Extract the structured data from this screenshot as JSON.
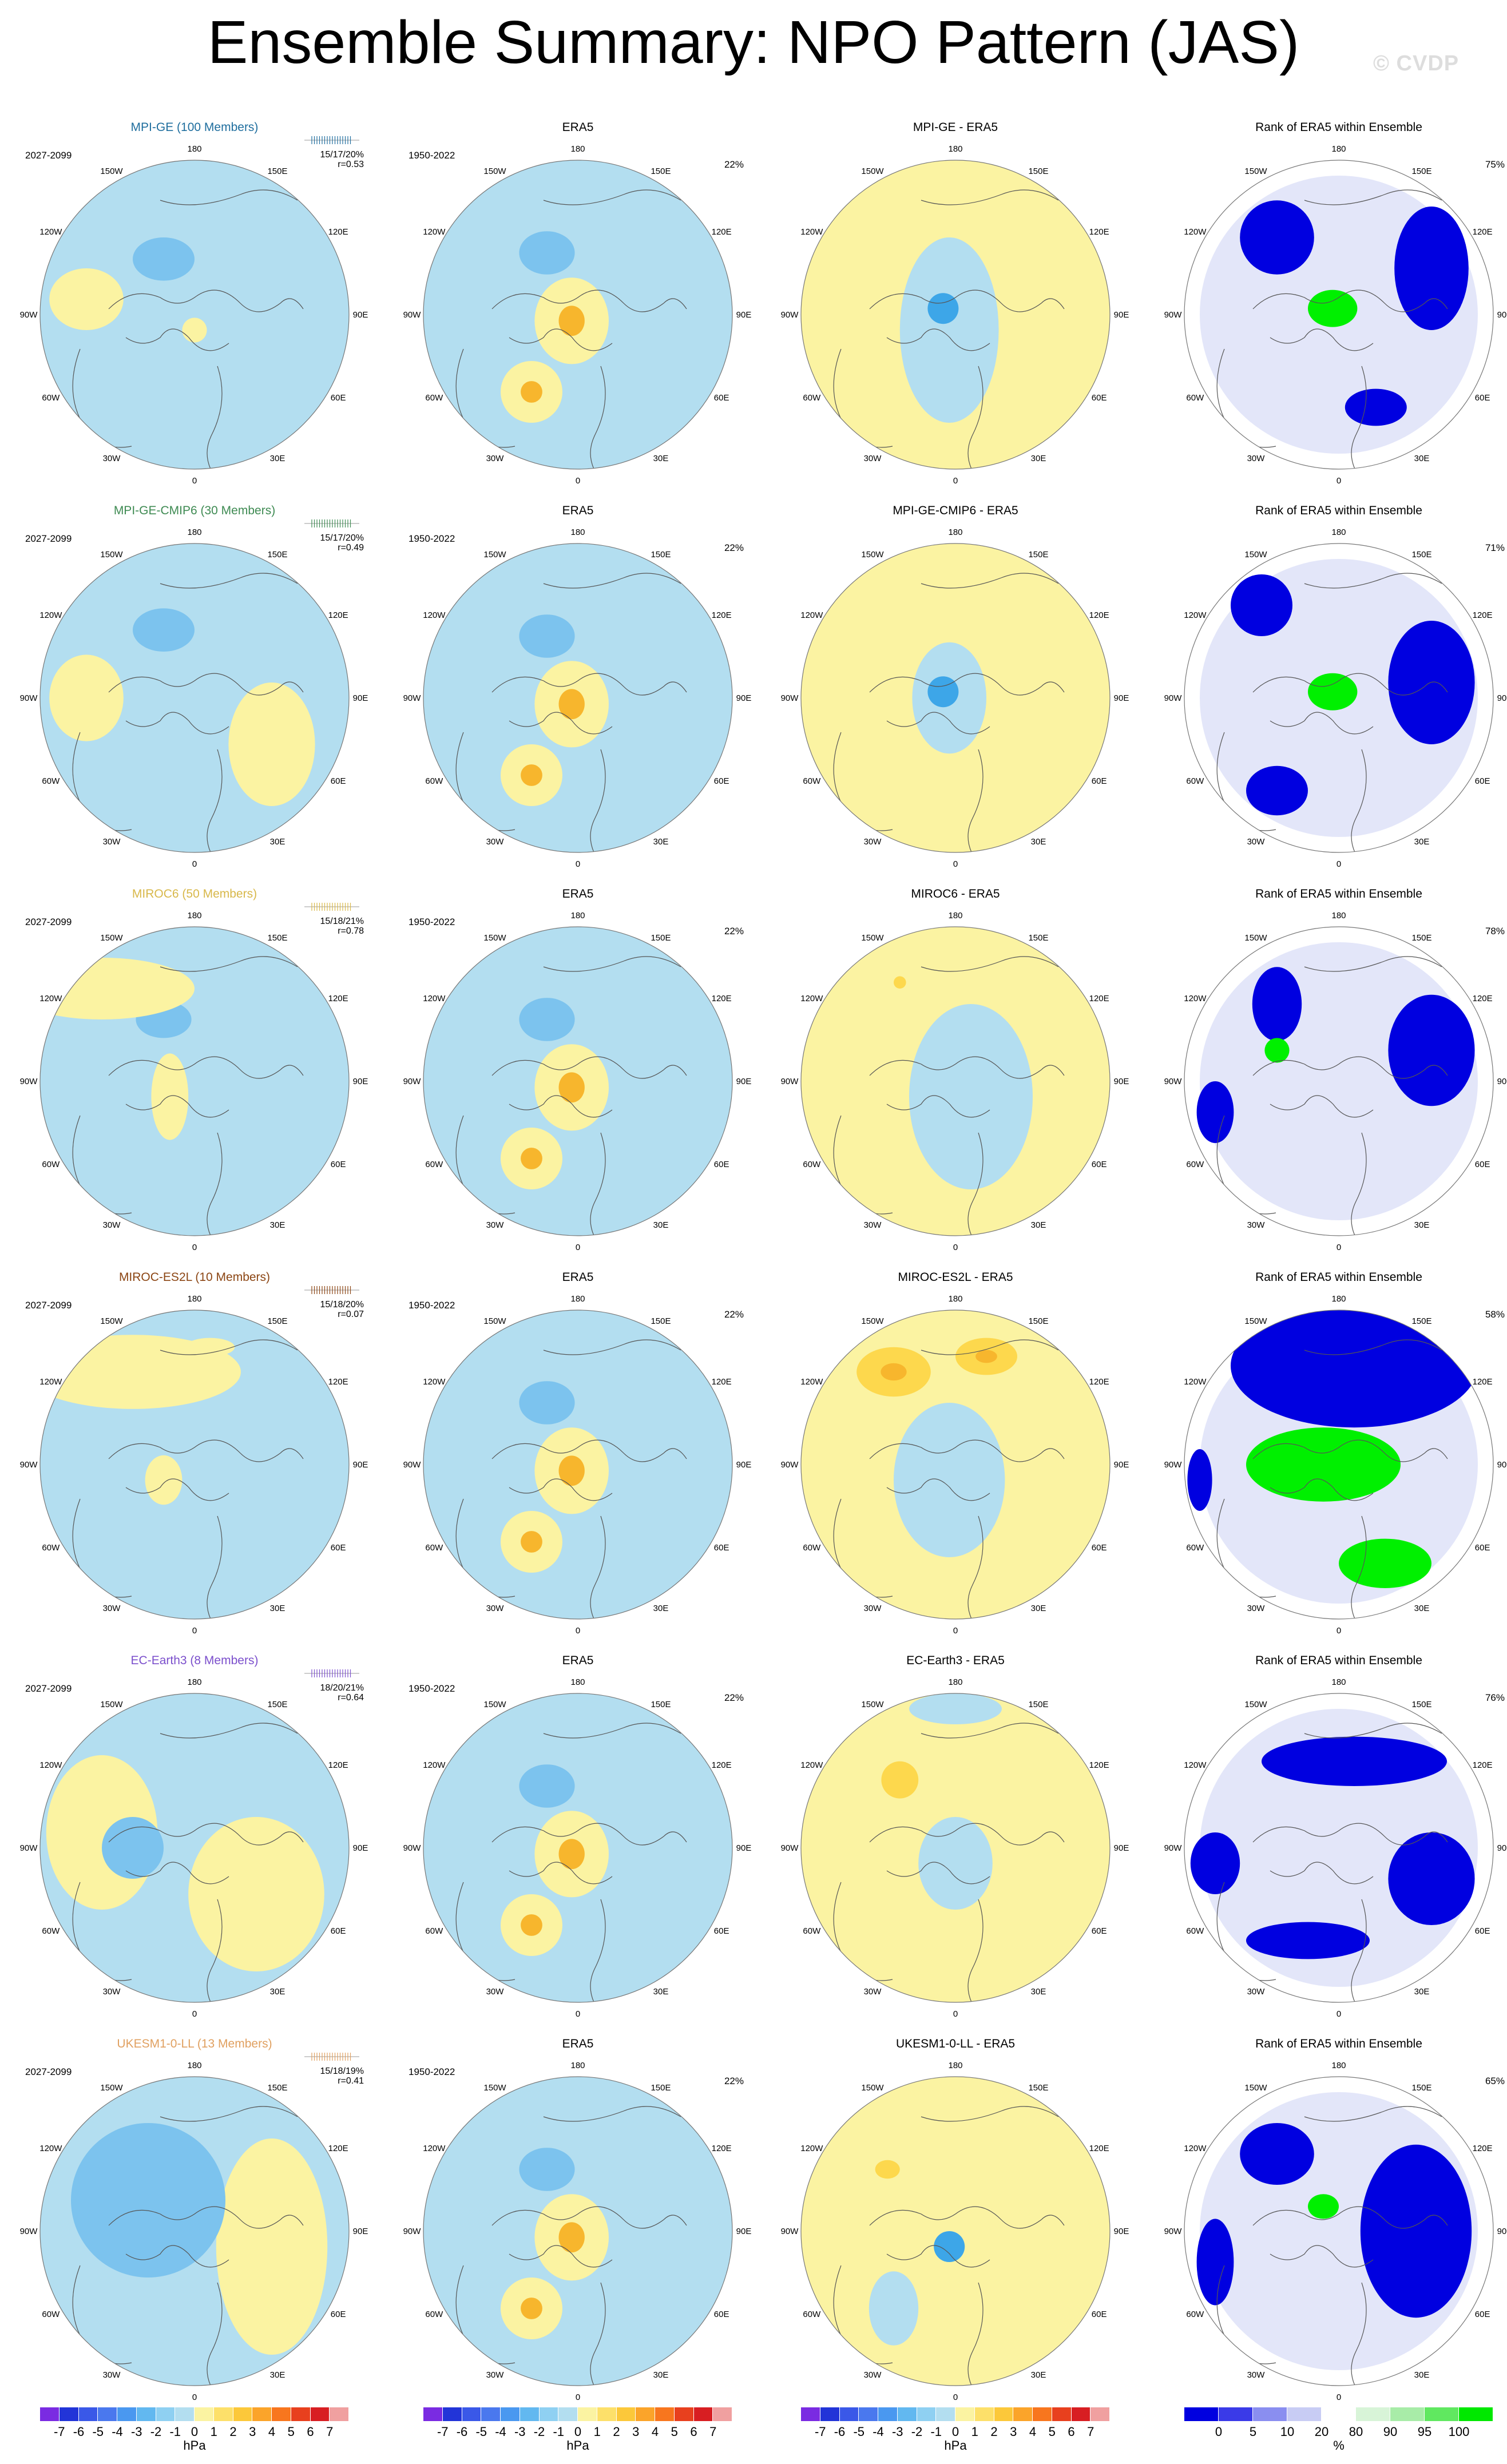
{
  "title": "Ensemble Summary: NPO Pattern (JAS)",
  "watermark": "© CVDP",
  "colors": {
    "pos_light": "#fbf3a2",
    "neg_light": "#b3def0",
    "pos_med": "#fdd84d",
    "neg_med": "#7cc3ee",
    "pos_strong": "#f7b62d",
    "neg_strong": "#3da6e8",
    "rank_low": "#0000e0",
    "rank_mid": "#c0c8f2",
    "rank_high": "#00f000",
    "land": "#555555"
  },
  "longitude_labels": [
    "180",
    "150E",
    "120E",
    "90E",
    "60E",
    "30E",
    "0",
    "30W",
    "60W",
    "90W",
    "120W",
    "150W"
  ],
  "rows": [
    {
      "model": "MPI-GE (100 Members)",
      "model_color": "#1f6e9e",
      "period": "2027-2099",
      "stats": "15/17/20%",
      "r": "r=0.53",
      "diff_title": "MPI-GE - ERA5",
      "era_title": "ERA5",
      "era_period": "1950-2022",
      "era_pct": "22%",
      "rank_title": "Rank of ERA5 within Ensemble",
      "rank_pct": "75%",
      "patterns": {
        "model": [
          [
            "neg",
            0.4,
            0.32,
            0.1,
            0.07
          ],
          [
            "pos",
            0.5,
            0.55,
            0.04,
            0.04
          ],
          [
            "pos",
            0.15,
            0.45,
            0.12,
            0.1
          ]
        ],
        "era": [
          [
            "neg",
            0.4,
            0.3,
            0.09,
            0.07
          ],
          [
            "pos",
            0.48,
            0.52,
            0.12,
            0.14
          ],
          [
            "pos",
            0.35,
            0.75,
            0.1,
            0.1
          ]
        ],
        "diff": [
          [
            "neg",
            0.48,
            0.55,
            0.16,
            0.3
          ],
          [
            "neg",
            0.46,
            0.48,
            0.05,
            0.05
          ]
        ],
        "rank": [
          [
            "low",
            0.3,
            0.25,
            0.12,
            0.12
          ],
          [
            "low",
            0.8,
            0.35,
            0.12,
            0.2
          ],
          [
            "high",
            0.48,
            0.48,
            0.08,
            0.06
          ],
          [
            "low",
            0.62,
            0.8,
            0.1,
            0.06
          ]
        ]
      }
    },
    {
      "model": "MPI-GE-CMIP6 (30 Members)",
      "model_color": "#3e8a52",
      "period": "2027-2099",
      "stats": "15/17/20%",
      "r": "r=0.49",
      "diff_title": "MPI-GE-CMIP6 - ERA5",
      "era_title": "ERA5",
      "era_period": "1950-2022",
      "era_pct": "22%",
      "rank_title": "Rank of ERA5 within Ensemble",
      "rank_pct": "71%",
      "patterns": {
        "model": [
          [
            "neg",
            0.4,
            0.28,
            0.1,
            0.07
          ],
          [
            "pos",
            0.15,
            0.5,
            0.12,
            0.14
          ],
          [
            "pos",
            0.75,
            0.65,
            0.14,
            0.2
          ]
        ],
        "era": [
          [
            "neg",
            0.4,
            0.3,
            0.09,
            0.07
          ],
          [
            "pos",
            0.48,
            0.52,
            0.12,
            0.14
          ],
          [
            "pos",
            0.35,
            0.75,
            0.1,
            0.1
          ]
        ],
        "diff": [
          [
            "neg",
            0.48,
            0.5,
            0.12,
            0.18
          ],
          [
            "neg",
            0.46,
            0.48,
            0.05,
            0.05
          ]
        ],
        "rank": [
          [
            "low",
            0.25,
            0.2,
            0.1,
            0.1
          ],
          [
            "low",
            0.8,
            0.45,
            0.14,
            0.2
          ],
          [
            "high",
            0.48,
            0.48,
            0.08,
            0.06
          ],
          [
            "low",
            0.3,
            0.8,
            0.1,
            0.08
          ]
        ]
      }
    },
    {
      "model": "MIROC6 (50 Members)",
      "model_color": "#d8b84a",
      "period": "2027-2099",
      "stats": "15/18/21%",
      "r": "r=0.78",
      "diff_title": "MIROC6 - ERA5",
      "era_title": "ERA5",
      "era_period": "1950-2022",
      "era_pct": "22%",
      "rank_title": "Rank of ERA5 within Ensemble",
      "rank_pct": "78%",
      "patterns": {
        "model": [
          [
            "neg",
            0.4,
            0.3,
            0.09,
            0.06
          ],
          [
            "pos",
            0.42,
            0.55,
            0.06,
            0.14
          ],
          [
            "pos",
            0.2,
            0.2,
            0.3,
            0.1
          ]
        ],
        "era": [
          [
            "neg",
            0.4,
            0.3,
            0.09,
            0.07
          ],
          [
            "pos",
            0.48,
            0.52,
            0.12,
            0.14
          ],
          [
            "pos",
            0.35,
            0.75,
            0.1,
            0.1
          ]
        ],
        "diff": [
          [
            "neg",
            0.55,
            0.55,
            0.2,
            0.3
          ],
          [
            "pos",
            0.32,
            0.18,
            0.02,
            0.02
          ]
        ],
        "rank": [
          [
            "low",
            0.3,
            0.25,
            0.08,
            0.12
          ],
          [
            "low",
            0.8,
            0.4,
            0.14,
            0.18
          ],
          [
            "low",
            0.1,
            0.6,
            0.06,
            0.1
          ],
          [
            "high",
            0.3,
            0.4,
            0.04,
            0.04
          ]
        ]
      }
    },
    {
      "model": "MIROC-ES2L (10 Members)",
      "model_color": "#8b4513",
      "period": "2027-2099",
      "stats": "15/18/20%",
      "r": "r=0.07",
      "diff_title": "MIROC-ES2L - ERA5",
      "era_title": "ERA5",
      "era_period": "1950-2022",
      "era_pct": "22%",
      "rank_title": "Rank of ERA5 within Ensemble",
      "rank_pct": "58%",
      "patterns": {
        "model": [
          [
            "pos",
            0.55,
            0.12,
            0.08,
            0.03
          ],
          [
            "pos",
            0.4,
            0.55,
            0.06,
            0.08
          ],
          [
            "pos",
            0.3,
            0.2,
            0.35,
            0.12
          ]
        ],
        "era": [
          [
            "neg",
            0.4,
            0.3,
            0.09,
            0.07
          ],
          [
            "pos",
            0.48,
            0.52,
            0.12,
            0.14
          ],
          [
            "pos",
            0.35,
            0.75,
            0.1,
            0.1
          ]
        ],
        "diff": [
          [
            "pos",
            0.3,
            0.2,
            0.12,
            0.08
          ],
          [
            "pos",
            0.6,
            0.15,
            0.1,
            0.06
          ],
          [
            "neg",
            0.48,
            0.55,
            0.18,
            0.25
          ]
        ],
        "rank": [
          [
            "low",
            0.55,
            0.18,
            0.4,
            0.2
          ],
          [
            "high",
            0.45,
            0.5,
            0.25,
            0.12
          ],
          [
            "high",
            0.65,
            0.82,
            0.15,
            0.08
          ],
          [
            "low",
            0.05,
            0.55,
            0.04,
            0.1
          ]
        ]
      }
    },
    {
      "model": "EC-Earth3 (8 Members)",
      "model_color": "#7b4fcc",
      "period": "2027-2099",
      "stats": "18/20/21%",
      "r": "r=0.64",
      "diff_title": "EC-Earth3 - ERA5",
      "era_title": "ERA5",
      "era_period": "1950-2022",
      "era_pct": "22%",
      "rank_title": "Rank of ERA5 within Ensemble",
      "rank_pct": "76%",
      "patterns": {
        "model": [
          [
            "pos",
            0.2,
            0.45,
            0.18,
            0.25
          ],
          [
            "neg",
            0.3,
            0.5,
            0.1,
            0.1
          ],
          [
            "pos",
            0.7,
            0.65,
            0.22,
            0.25
          ]
        ],
        "era": [
          [
            "neg",
            0.4,
            0.3,
            0.09,
            0.07
          ],
          [
            "pos",
            0.48,
            0.52,
            0.12,
            0.14
          ],
          [
            "pos",
            0.35,
            0.75,
            0.1,
            0.1
          ]
        ],
        "diff": [
          [
            "pos",
            0.32,
            0.28,
            0.06,
            0.06
          ],
          [
            "neg",
            0.5,
            0.55,
            0.12,
            0.15
          ],
          [
            "neg",
            0.5,
            0.05,
            0.15,
            0.05
          ]
        ],
        "rank": [
          [
            "low",
            0.1,
            0.55,
            0.08,
            0.1
          ],
          [
            "low",
            0.55,
            0.22,
            0.3,
            0.08
          ],
          [
            "low",
            0.8,
            0.6,
            0.14,
            0.15
          ],
          [
            "low",
            0.4,
            0.8,
            0.2,
            0.06
          ]
        ]
      }
    },
    {
      "model": "UKESM1-0-LL (13 Members)",
      "model_color": "#e0a060",
      "period": "2027-2099",
      "stats": "15/18/19%",
      "r": "r=0.41",
      "diff_title": "UKESM1-0-LL - ERA5",
      "era_title": "ERA5",
      "era_period": "1950-2022",
      "era_pct": "22%",
      "rank_title": "Rank of ERA5 within Ensemble",
      "rank_pct": "65%",
      "patterns": {
        "model": [
          [
            "pos",
            0.75,
            0.55,
            0.18,
            0.35
          ],
          [
            "neg",
            0.35,
            0.4,
            0.25,
            0.25
          ]
        ],
        "era": [
          [
            "neg",
            0.4,
            0.3,
            0.09,
            0.07
          ],
          [
            "pos",
            0.48,
            0.52,
            0.12,
            0.14
          ],
          [
            "pos",
            0.35,
            0.75,
            0.1,
            0.1
          ]
        ],
        "diff": [
          [
            "pos",
            0.28,
            0.3,
            0.04,
            0.03
          ],
          [
            "neg",
            0.48,
            0.55,
            0.05,
            0.05
          ],
          [
            "neg",
            0.3,
            0.75,
            0.08,
            0.12
          ]
        ],
        "rank": [
          [
            "low",
            0.3,
            0.25,
            0.12,
            0.1
          ],
          [
            "low",
            0.75,
            0.5,
            0.18,
            0.28
          ],
          [
            "low",
            0.1,
            0.6,
            0.06,
            0.14
          ],
          [
            "high",
            0.45,
            0.42,
            0.05,
            0.04
          ]
        ]
      }
    }
  ],
  "colorbars": [
    {
      "unit": "hPa",
      "ticks": [
        "-7",
        "-6",
        "-5",
        "-4",
        "-3",
        "-2",
        "-1",
        "0",
        "1",
        "2",
        "3",
        "4",
        "5",
        "6",
        "7"
      ],
      "colors": [
        "#7a2be2",
        "#2234d8",
        "#3a58e8",
        "#4a78ee",
        "#4a98f0",
        "#62b8f0",
        "#8fd0f2",
        "#b3def0",
        "#fbf3a2",
        "#fde06a",
        "#fcc83a",
        "#fba42a",
        "#f8761e",
        "#e8401e",
        "#d81e22",
        "#f0a0a0"
      ]
    },
    {
      "unit": "hPa",
      "ticks": [
        "-7",
        "-6",
        "-5",
        "-4",
        "-3",
        "-2",
        "-1",
        "0",
        "1",
        "2",
        "3",
        "4",
        "5",
        "6",
        "7"
      ],
      "colors": [
        "#7a2be2",
        "#2234d8",
        "#3a58e8",
        "#4a78ee",
        "#4a98f0",
        "#62b8f0",
        "#8fd0f2",
        "#b3def0",
        "#fbf3a2",
        "#fde06a",
        "#fcc83a",
        "#fba42a",
        "#f8761e",
        "#e8401e",
        "#d81e22",
        "#f0a0a0"
      ]
    },
    {
      "unit": "hPa",
      "ticks": [
        "-7",
        "-6",
        "-5",
        "-4",
        "-3",
        "-2",
        "-1",
        "0",
        "1",
        "2",
        "3",
        "4",
        "5",
        "6",
        "7"
      ],
      "colors": [
        "#7a2be2",
        "#2234d8",
        "#3a58e8",
        "#4a78ee",
        "#4a98f0",
        "#62b8f0",
        "#8fd0f2",
        "#b3def0",
        "#fbf3a2",
        "#fde06a",
        "#fcc83a",
        "#fba42a",
        "#f8761e",
        "#e8401e",
        "#d81e22",
        "#f0a0a0"
      ]
    },
    {
      "unit": "%",
      "ticks": [
        "0",
        "5",
        "10",
        "20",
        "80",
        "90",
        "95",
        "100"
      ],
      "colors": [
        "#0000e0",
        "#3a3ae8",
        "#8a8ef0",
        "#c8ccf4",
        "#ffffff",
        "#d8f4d8",
        "#a8eca8",
        "#60e860",
        "#00e800"
      ]
    }
  ]
}
